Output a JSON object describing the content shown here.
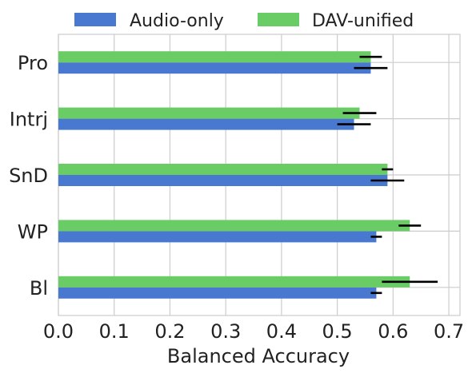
{
  "chart_data": {
    "type": "bar",
    "orientation": "horizontal",
    "categories": [
      "Pro",
      "Intrj",
      "SnD",
      "WP",
      "Bl"
    ],
    "series": [
      {
        "name": "Audio-only",
        "color": "#4878d0",
        "values": [
          0.56,
          0.53,
          0.59,
          0.57,
          0.57
        ],
        "errors": [
          0.03,
          0.03,
          0.03,
          0.01,
          0.01
        ]
      },
      {
        "name": "DAV-unified",
        "color": "#6acc64",
        "values": [
          0.56,
          0.54,
          0.59,
          0.63,
          0.63
        ],
        "errors": [
          0.02,
          0.03,
          0.01,
          0.02,
          0.05
        ]
      }
    ],
    "title": "",
    "xlabel": "Balanced Accuracy",
    "ylabel": "",
    "xlim": [
      0,
      0.72
    ],
    "xticks": [
      "0.0",
      "0.1",
      "0.2",
      "0.3",
      "0.4",
      "0.5",
      "0.6",
      "0.7"
    ],
    "grid": true,
    "legend_position": "top"
  }
}
